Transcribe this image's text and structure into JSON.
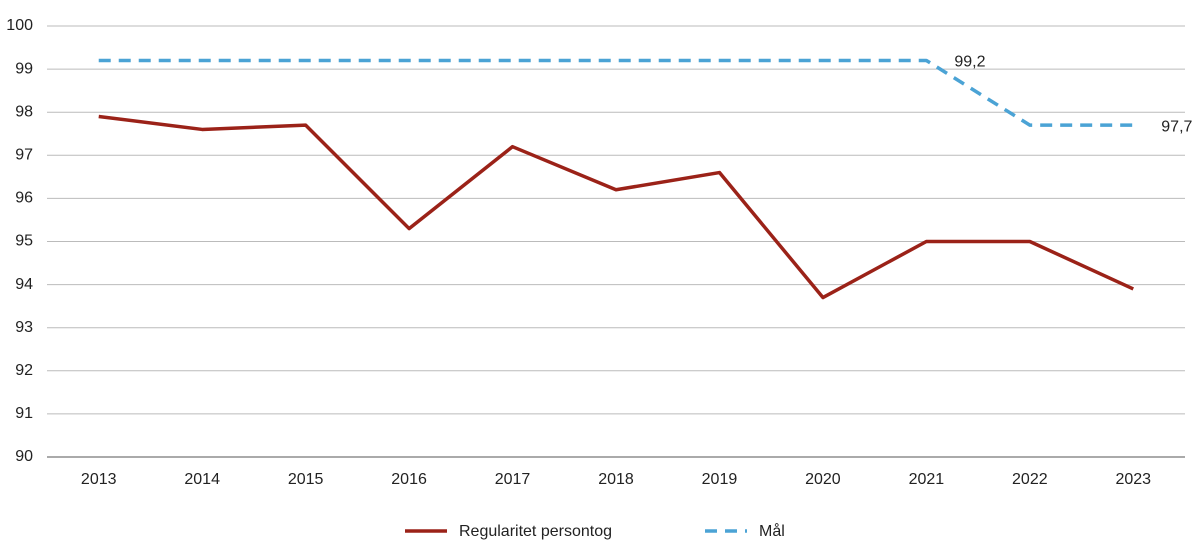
{
  "chart_data": {
    "type": "line",
    "categories": [
      "2013",
      "2014",
      "2015",
      "2016",
      "2017",
      "2018",
      "2019",
      "2020",
      "2021",
      "2022",
      "2023"
    ],
    "series": [
      {
        "name": "Regularitet persontog",
        "color": "#9b2218",
        "dashed": false,
        "values": [
          97.9,
          97.6,
          97.7,
          95.3,
          97.2,
          96.2,
          96.6,
          93.7,
          95.0,
          95.0,
          93.9
        ]
      },
      {
        "name": "Mål",
        "color": "#4ba3d5",
        "dashed": true,
        "values": [
          99.2,
          99.2,
          99.2,
          99.2,
          99.2,
          99.2,
          99.2,
          99.2,
          99.2,
          97.7,
          97.7
        ],
        "value_labels": [
          null,
          null,
          null,
          null,
          null,
          null,
          null,
          null,
          "99,2",
          null,
          "97,7"
        ]
      }
    ],
    "ylim": [
      90,
      100
    ],
    "yticks": [
      90,
      91,
      92,
      93,
      94,
      95,
      96,
      97,
      98,
      99,
      100
    ],
    "grid": true,
    "legend": "bottom"
  }
}
